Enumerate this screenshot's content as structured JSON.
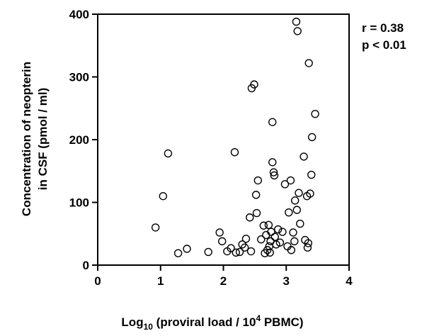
{
  "chart_data": {
    "type": "scatter",
    "title": "",
    "xlabel": {
      "prefix": "Log",
      "prefix_sub": "10",
      "mid": " (proviral load / 10",
      "sup": "4",
      "suffix": " PBMC)"
    },
    "ylabel_line1": "Concentration of neopterin",
    "ylabel_line2": "in CSF (pmol / ml)",
    "xlim": [
      0,
      4
    ],
    "ylim": [
      0,
      400
    ],
    "xticks": [
      "0",
      "1",
      "2",
      "3",
      "4"
    ],
    "yticks": [
      "0",
      "100",
      "200",
      "300",
      "400"
    ],
    "grid": false,
    "annotations": {
      "r": "r = 0.38",
      "p": "p < 0.01"
    },
    "marker": "open-circle",
    "color": "#000000",
    "points": [
      {
        "x": 0.92,
        "y": 60
      },
      {
        "x": 1.04,
        "y": 110
      },
      {
        "x": 1.12,
        "y": 178
      },
      {
        "x": 1.28,
        "y": 19
      },
      {
        "x": 1.42,
        "y": 26
      },
      {
        "x": 1.76,
        "y": 21
      },
      {
        "x": 1.94,
        "y": 52
      },
      {
        "x": 1.98,
        "y": 38
      },
      {
        "x": 2.06,
        "y": 22
      },
      {
        "x": 2.12,
        "y": 27
      },
      {
        "x": 2.18,
        "y": 180
      },
      {
        "x": 2.2,
        "y": 20
      },
      {
        "x": 2.26,
        "y": 21
      },
      {
        "x": 2.3,
        "y": 33
      },
      {
        "x": 2.34,
        "y": 28
      },
      {
        "x": 2.36,
        "y": 42
      },
      {
        "x": 2.42,
        "y": 76
      },
      {
        "x": 2.44,
        "y": 22
      },
      {
        "x": 2.45,
        "y": 282
      },
      {
        "x": 2.49,
        "y": 288
      },
      {
        "x": 2.52,
        "y": 112
      },
      {
        "x": 2.53,
        "y": 83
      },
      {
        "x": 2.55,
        "y": 135
      },
      {
        "x": 2.6,
        "y": 41
      },
      {
        "x": 2.64,
        "y": 63
      },
      {
        "x": 2.66,
        "y": 19
      },
      {
        "x": 2.68,
        "y": 48
      },
      {
        "x": 2.7,
        "y": 24
      },
      {
        "x": 2.72,
        "y": 64
      },
      {
        "x": 2.73,
        "y": 30
      },
      {
        "x": 2.74,
        "y": 20
      },
      {
        "x": 2.75,
        "y": 38
      },
      {
        "x": 2.76,
        "y": 53
      },
      {
        "x": 2.78,
        "y": 164
      },
      {
        "x": 2.78,
        "y": 228
      },
      {
        "x": 2.8,
        "y": 148
      },
      {
        "x": 2.81,
        "y": 143
      },
      {
        "x": 2.82,
        "y": 45
      },
      {
        "x": 2.84,
        "y": 33
      },
      {
        "x": 2.87,
        "y": 57
      },
      {
        "x": 2.9,
        "y": 36
      },
      {
        "x": 2.94,
        "y": 53
      },
      {
        "x": 2.98,
        "y": 129
      },
      {
        "x": 3.02,
        "y": 30
      },
      {
        "x": 3.04,
        "y": 84
      },
      {
        "x": 3.07,
        "y": 135
      },
      {
        "x": 3.08,
        "y": 24
      },
      {
        "x": 3.11,
        "y": 52
      },
      {
        "x": 3.13,
        "y": 38
      },
      {
        "x": 3.14,
        "y": 103
      },
      {
        "x": 3.16,
        "y": 388
      },
      {
        "x": 3.17,
        "y": 88
      },
      {
        "x": 3.18,
        "y": 373
      },
      {
        "x": 3.2,
        "y": 115
      },
      {
        "x": 3.22,
        "y": 66
      },
      {
        "x": 3.28,
        "y": 173
      },
      {
        "x": 3.3,
        "y": 40
      },
      {
        "x": 3.33,
        "y": 110
      },
      {
        "x": 3.34,
        "y": 28
      },
      {
        "x": 3.35,
        "y": 35
      },
      {
        "x": 3.36,
        "y": 322
      },
      {
        "x": 3.38,
        "y": 114
      },
      {
        "x": 3.4,
        "y": 144
      },
      {
        "x": 3.41,
        "y": 204
      },
      {
        "x": 3.46,
        "y": 241
      }
    ]
  }
}
